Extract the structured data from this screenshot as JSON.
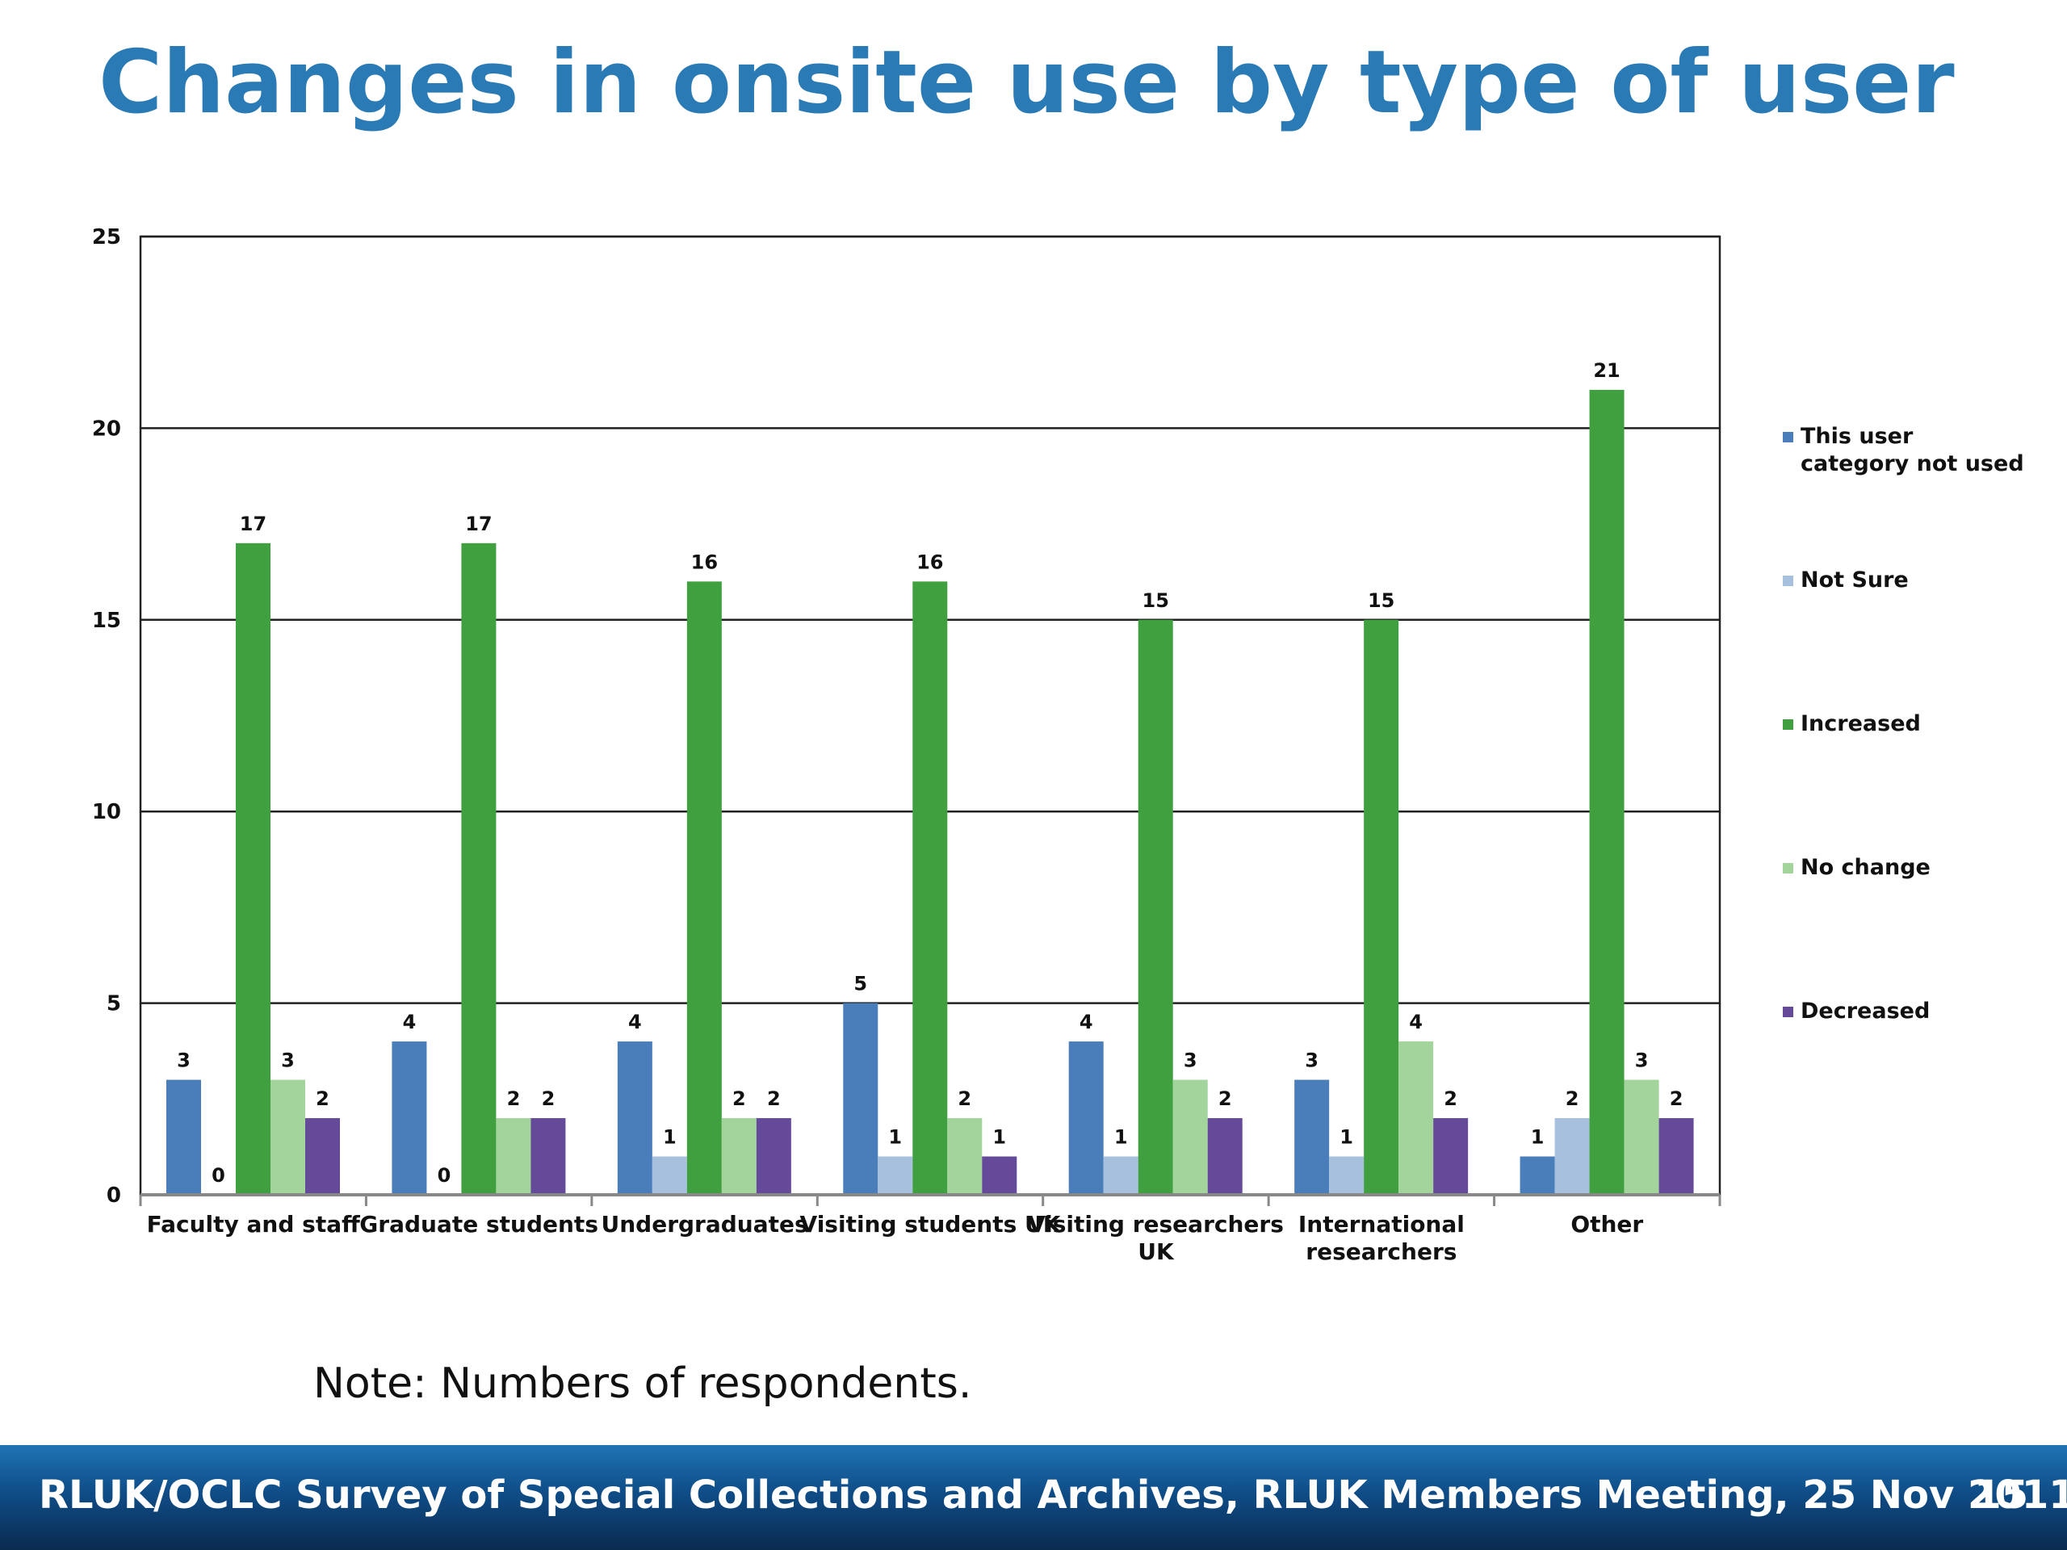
{
  "slide": {
    "title": "Changes in onsite use by type of user",
    "note": "Note: Numbers of respondents.",
    "footer": "RLUK/OCLC Survey of Special Collections and Archives, RLUK Members Meeting, 25 Nov 2011",
    "page_number": "15"
  },
  "chart_data": {
    "type": "bar",
    "title": "",
    "xlabel": "",
    "ylabel": "",
    "ylim": [
      0,
      25
    ],
    "yticks": [
      0,
      5,
      10,
      15,
      20,
      25
    ],
    "grid": true,
    "legend_position": "right",
    "categories": [
      [
        "Faculty and staff"
      ],
      [
        "Graduate students"
      ],
      [
        "Undergraduates"
      ],
      [
        "Visiting students UK"
      ],
      [
        "Visiting researchers",
        "UK"
      ],
      [
        "International",
        "researchers"
      ],
      [
        "Other"
      ]
    ],
    "series": [
      {
        "name": [
          "This user",
          "category not used"
        ],
        "color": "#4a7ebb",
        "values": [
          3,
          4,
          4,
          5,
          4,
          3,
          1
        ]
      },
      {
        "name": [
          "Not Sure"
        ],
        "color": "#a7c0de",
        "values": [
          0,
          0,
          1,
          1,
          1,
          1,
          2
        ]
      },
      {
        "name": [
          "Increased"
        ],
        "color": "#40a040",
        "values": [
          17,
          17,
          16,
          16,
          15,
          15,
          21
        ]
      },
      {
        "name": [
          "No change"
        ],
        "color": "#a2d49c",
        "values": [
          3,
          2,
          2,
          2,
          3,
          4,
          3
        ]
      },
      {
        "name": [
          "Decreased"
        ],
        "color": "#664a9a",
        "values": [
          2,
          2,
          2,
          1,
          2,
          2,
          2
        ]
      }
    ]
  }
}
